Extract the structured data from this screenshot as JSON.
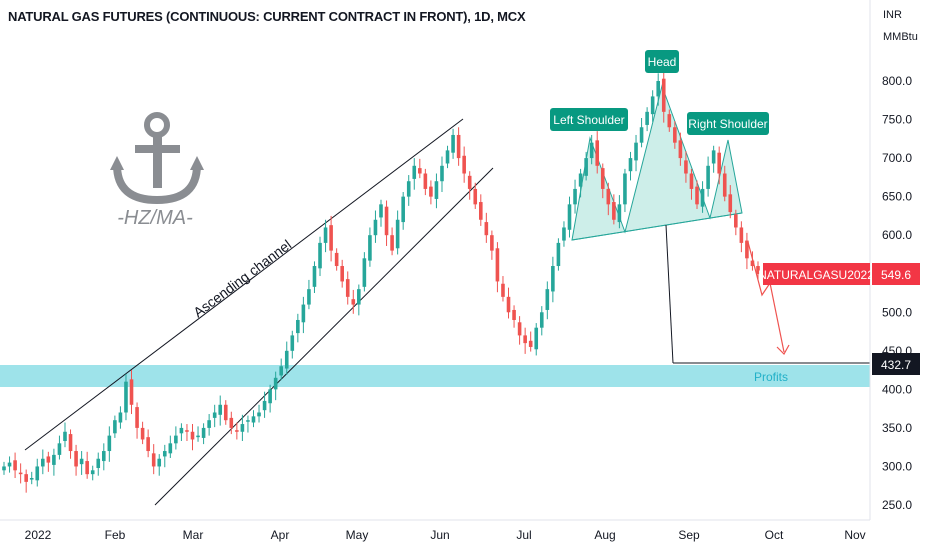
{
  "header": {
    "title": "NATURAL GAS FUTURES (CONTINUOUS: CURRENT CONTRACT IN FRONT), 1D, MCX",
    "currency": "INR",
    "unit": "MMBtu"
  },
  "watermark": {
    "icon": "anchor-icon",
    "text": "-HZ/MA-"
  },
  "colors": {
    "up": "#26a69a",
    "down": "#ef5350",
    "zone": "#9ee3ea",
    "pattern_fill": "#cdeee9",
    "badge": "#089981",
    "price_label": "#f23645",
    "profits_text": "#22b0c8"
  },
  "chart_data": {
    "type": "candlestick",
    "y_ticks": [
      250.0,
      300.0,
      350.0,
      400.0,
      450.0,
      500.0,
      550.0,
      600.0,
      650.0,
      700.0,
      750.0,
      800.0
    ],
    "y_tick_labels": [
      "250.0",
      "300.0",
      "350.0",
      "400.0",
      "450.0",
      "500.0",
      "550.0",
      "600.0",
      "650.0",
      "700.0",
      "750.0",
      "800.0"
    ],
    "x_tick_labels": [
      "2022",
      "Feb",
      "Mar",
      "Apr",
      "May",
      "Jun",
      "Jul",
      "Aug",
      "Sep",
      "Oct",
      "Nov"
    ],
    "series": [
      {
        "name": "NATURALGASU2022",
        "close": [
          300,
          305,
          295,
          290,
          280,
          285,
          300,
          310,
          305,
          315,
          330,
          345,
          320,
          300,
          310,
          290,
          295,
          310,
          320,
          340,
          360,
          370,
          410,
          380,
          350,
          335,
          320,
          300,
          310,
          320,
          330,
          340,
          350,
          345,
          335,
          340,
          350,
          360,
          370,
          380,
          360,
          350,
          345,
          355,
          360,
          365,
          370,
          385,
          400,
          415,
          430,
          450,
          470,
          490,
          510,
          530,
          560,
          590,
          610,
          580,
          560,
          540,
          520,
          510,
          530,
          570,
          600,
          620,
          640,
          600,
          580,
          620,
          650,
          670,
          690,
          680,
          660,
          650,
          670,
          690,
          710,
          730,
          700,
          680,
          660,
          640,
          620,
          600,
          580,
          540,
          520,
          500,
          490,
          470,
          460,
          455,
          480,
          500,
          530,
          560,
          590,
          610,
          640,
          660,
          680,
          700,
          720,
          690,
          660,
          640,
          620,
          640,
          680,
          700,
          720,
          740,
          760,
          780,
          800,
          760,
          740,
          720,
          700,
          680,
          660,
          640,
          660,
          690,
          710,
          680,
          650,
          630,
          610,
          590,
          570,
          560,
          549.6
        ]
      }
    ],
    "last_price_label": "549.6",
    "target_label": "432.7",
    "annotations": {
      "pattern": [
        "Left Shoulder",
        "Head",
        "Right Shoulder"
      ],
      "channel": "Ascending channel",
      "zone": "Profits"
    }
  }
}
